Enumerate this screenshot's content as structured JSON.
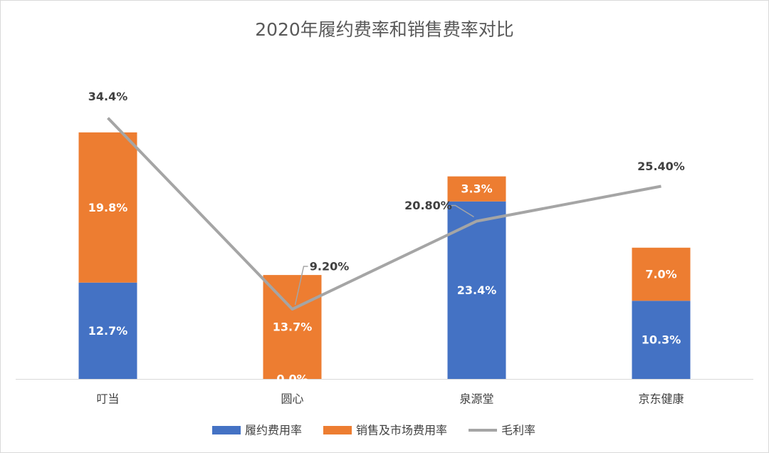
{
  "chart_data": {
    "type": "bar",
    "stacked": true,
    "title": "2020年履约费率和销售费率对比",
    "categories": [
      "叮当",
      "圆心",
      "泉源堂",
      "京东健康"
    ],
    "series": [
      {
        "name": "履约费用率",
        "kind": "bar",
        "color": "#4472C4",
        "values": [
          12.7,
          0.0,
          23.4,
          10.3
        ],
        "labels": [
          "12.7%",
          "0.0%",
          "23.4%",
          "10.3%"
        ]
      },
      {
        "name": "销售及市场费用率",
        "kind": "bar",
        "color": "#ED7D31",
        "values": [
          19.8,
          13.7,
          3.3,
          7.0
        ],
        "labels": [
          "19.8%",
          "13.7%",
          "3.3%",
          "7.0%"
        ]
      },
      {
        "name": "毛利率",
        "kind": "line",
        "color": "#A5A5A5",
        "values": [
          34.4,
          9.2,
          20.8,
          25.4
        ],
        "labels": [
          "34.4%",
          "9.20%",
          "20.80%",
          "25.40%"
        ]
      }
    ],
    "ylim": [
      0,
      40
    ],
    "grid": false,
    "legend": "bottom"
  }
}
